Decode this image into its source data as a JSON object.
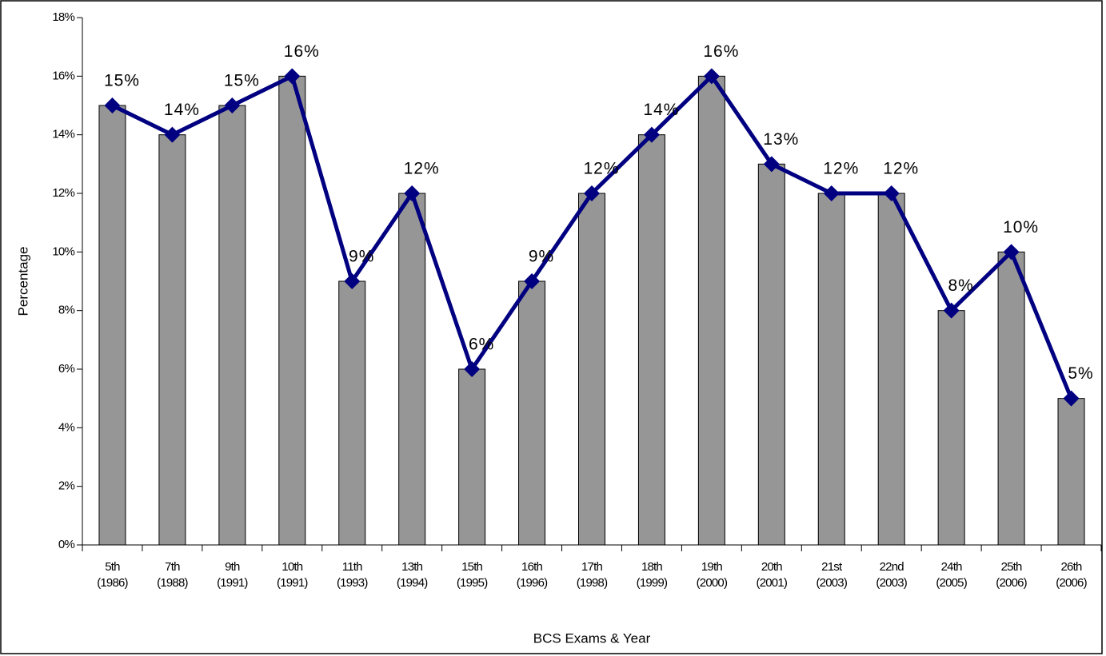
{
  "chart_data": {
    "type": "bar",
    "x_label": "BCS Exams & Year",
    "y_label": "Percentage",
    "categories": [
      [
        "5th",
        "(1986)"
      ],
      [
        "7th",
        "(1988)"
      ],
      [
        "9th",
        "(1991)"
      ],
      [
        "10th",
        "(1991)"
      ],
      [
        "11th",
        "(1993)"
      ],
      [
        "13th",
        "(1994)"
      ],
      [
        "15th",
        "(1995)"
      ],
      [
        "16th",
        "(1996)"
      ],
      [
        "17th",
        "(1998)"
      ],
      [
        "18th",
        "(1999)"
      ],
      [
        "19th",
        "(2000)"
      ],
      [
        "20th",
        "(2001)"
      ],
      [
        "21st",
        "(2003)"
      ],
      [
        "22nd",
        "(2003)"
      ],
      [
        "24th",
        "(2005)"
      ],
      [
        "25th",
        "(2006)"
      ],
      [
        "26th",
        "(2006)"
      ]
    ],
    "series": [
      {
        "type": "bar",
        "color": "#969696",
        "values": [
          15,
          14,
          15,
          16,
          9,
          12,
          6,
          9,
          12,
          14,
          16,
          13,
          12,
          12,
          8,
          10,
          5
        ]
      },
      {
        "type": "line",
        "color": "#000080",
        "values": [
          15,
          14,
          15,
          16,
          9,
          12,
          6,
          9,
          12,
          14,
          16,
          13,
          12,
          12,
          8,
          10,
          5
        ],
        "value_labels": [
          "15%",
          "14%",
          "15%",
          "16%",
          "9%",
          "12%",
          "6%",
          "9%",
          "12%",
          "14%",
          "16%",
          "13%",
          "12%",
          "12%",
          "8%",
          "10%",
          "5%"
        ]
      }
    ],
    "ylim": [
      0,
      18
    ],
    "yticks": [
      {
        "value": 0,
        "label": "0%"
      },
      {
        "value": 2,
        "label": "2%"
      },
      {
        "value": 4,
        "label": "4%"
      },
      {
        "value": 6,
        "label": "6%"
      },
      {
        "value": 8,
        "label": "8%"
      },
      {
        "value": 10,
        "label": "10%"
      },
      {
        "value": 12,
        "label": "12%"
      },
      {
        "value": 14,
        "label": "14%"
      },
      {
        "value": 16,
        "label": "16%"
      },
      {
        "value": 18,
        "label": "18%"
      }
    ],
    "grid": false
  }
}
